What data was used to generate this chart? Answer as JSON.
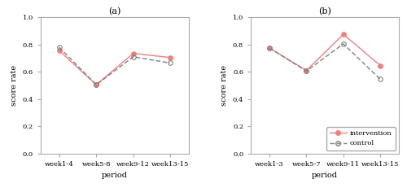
{
  "panel_a": {
    "title": "(a)",
    "xlabel": "period",
    "ylabel": "score rate",
    "x_labels": [
      "week1-4",
      "week5-8",
      "week9-12",
      "week13-15"
    ],
    "intervention": [
      0.755,
      0.505,
      0.735,
      0.705
    ],
    "control": [
      0.78,
      0.505,
      0.71,
      0.665
    ],
    "ylim": [
      0.0,
      1.0
    ],
    "yticks": [
      0.0,
      0.2,
      0.4,
      0.6,
      0.8,
      1.0
    ]
  },
  "panel_b": {
    "title": "(b)",
    "xlabel": "period",
    "ylabel": "score rate",
    "x_labels": [
      "week1-3",
      "week5-7",
      "week9-11",
      "week13-15"
    ],
    "intervention": [
      0.775,
      0.61,
      0.875,
      0.645
    ],
    "control": [
      0.775,
      0.605,
      0.805,
      0.545
    ],
    "ylim": [
      0.0,
      1.0
    ],
    "yticks": [
      0.0,
      0.2,
      0.4,
      0.6,
      0.8,
      1.0
    ]
  },
  "intervention_color": "#f08080",
  "control_color": "#808080",
  "legend_labels": [
    "intervention",
    "control"
  ],
  "background_color": "#ffffff",
  "spine_color": "#aaaaaa"
}
